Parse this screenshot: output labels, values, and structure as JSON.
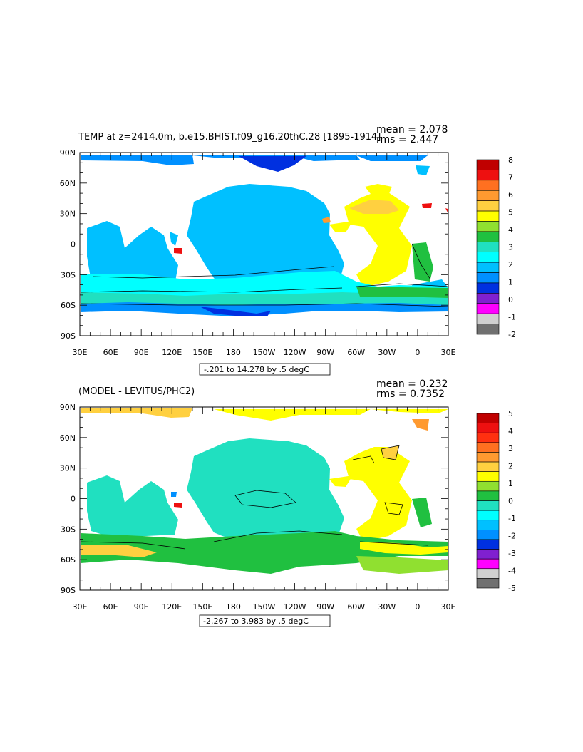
{
  "panels": [
    {
      "title_left": "TEMP at z=2414.0m, b.e15.BHIST.f09_g16.20thC.28 [1895-1914]",
      "stats": {
        "mean": "mean = 2.078",
        "rms": "rms = 2.447"
      },
      "range_label": "-.201 to 14.278 by .5 degC",
      "colorbar_labels": [
        "8",
        "7",
        "6",
        "5",
        "4",
        "3",
        "2",
        "1",
        "0",
        "-1",
        "-2"
      ],
      "colorbar_colors": [
        "#c00000",
        "#ee1010",
        "#ff7020",
        "#ff9a30",
        "#ffd040",
        "#ffff00",
        "#90e030",
        "#20c040",
        "#20e0c0",
        "#00ffff",
        "#00c0ff",
        "#0090ff",
        "#0030e0",
        "#8020d0",
        "#ff00ff",
        "#d0d0d0",
        "#707070"
      ],
      "colors": {
        "ocean": "#00c0ff",
        "southern1": "#00ffff",
        "southern2": "#20e0c0",
        "deep": "#0090ff",
        "vdeep": "#0030e0",
        "warm": "#ffff00",
        "warm2": "#ffd040",
        "green": "#20c040",
        "orange": "#ff9a30",
        "red": "#ee1010"
      }
    },
    {
      "title_left": "(MODEL - LEVITUS/PHC2)",
      "stats": {
        "mean": "mean = 0.232",
        "rms": "rms = 0.7352"
      },
      "range_label": "-2.267 to 3.983 by .5 degC",
      "colorbar_labels": [
        "5",
        "4",
        "3",
        "2",
        "1",
        "0",
        "-1",
        "-2",
        "-3",
        "-4",
        "-5"
      ],
      "colorbar_colors": [
        "#c00000",
        "#ee1010",
        "#ff3010",
        "#ff7020",
        "#ff9a30",
        "#ffd040",
        "#ffff00",
        "#90e030",
        "#20c040",
        "#20e0c0",
        "#00ffff",
        "#00c0ff",
        "#0090ff",
        "#0030e0",
        "#8020d0",
        "#ff00ff",
        "#d0d0d0",
        "#707070"
      ],
      "colors": {
        "ocean": "#20e0c0",
        "southern1": "#20c040",
        "southern2": "#90e030",
        "deep": "#00ffff",
        "vdeep": "#20c040",
        "warm": "#ffff00",
        "warm2": "#ffd040",
        "green": "#90e030",
        "orange": "#ff9a30",
        "red": "#ee1010"
      }
    }
  ],
  "lat_labels": [
    "90N",
    "60N",
    "30N",
    "0",
    "30S",
    "60S",
    "90S"
  ],
  "lon_labels": [
    "30E",
    "60E",
    "90E",
    "120E",
    "150E",
    "180",
    "150W",
    "120W",
    "90W",
    "60W",
    "30W",
    "0",
    "30E"
  ]
}
